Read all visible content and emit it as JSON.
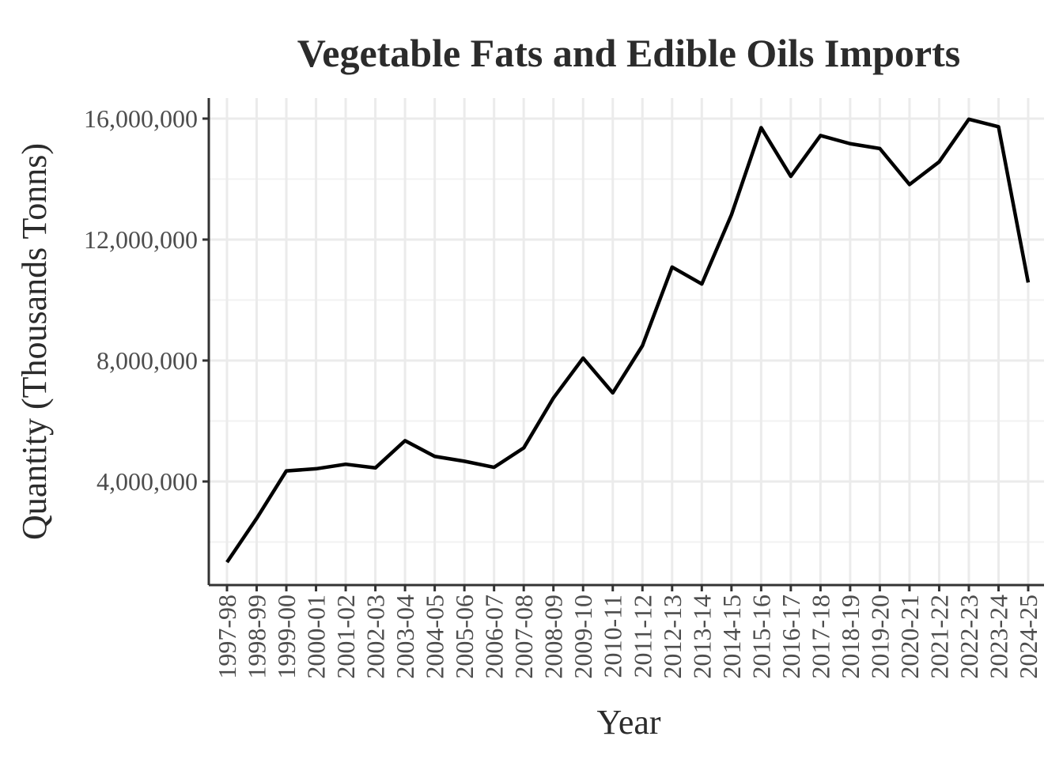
{
  "chart_data": {
    "type": "line",
    "title": "Vegetable Fats and Edible Oils Imports",
    "xlabel": "Year",
    "ylabel": "Quantity (Thousands Tonns)",
    "categories": [
      "1997-98",
      "1998-99",
      "1999-00",
      "2000-01",
      "2001-02",
      "2002-03",
      "2003-04",
      "2004-05",
      "2005-06",
      "2006-07",
      "2007-08",
      "2008-09",
      "2009-10",
      "2010-11",
      "2011-12",
      "2012-13",
      "2013-14",
      "2014-15",
      "2015-16",
      "2016-17",
      "2017-18",
      "2018-19",
      "2019-20",
      "2020-21",
      "2021-22",
      "2022-23",
      "2023-24",
      "2024-25"
    ],
    "series": [
      {
        "values": [
          1330000,
          2780000,
          4350000,
          4420000,
          4570000,
          4450000,
          5350000,
          4830000,
          4670000,
          4470000,
          5110000,
          6760000,
          8080000,
          6930000,
          8490000,
          11090000,
          10530000,
          12820000,
          15700000,
          14090000,
          15440000,
          15170000,
          15010000,
          13820000,
          14570000,
          15980000,
          15730000,
          10580000
        ]
      }
    ],
    "yticks": [
      4000000,
      8000000,
      12000000,
      16000000
    ],
    "ytick_labels": [
      "4,000,000",
      "8,000,000",
      "12,000,000",
      "16,000,000"
    ],
    "ylim": [
      0,
      17000000
    ],
    "grid": true,
    "line_color": "#000000"
  }
}
